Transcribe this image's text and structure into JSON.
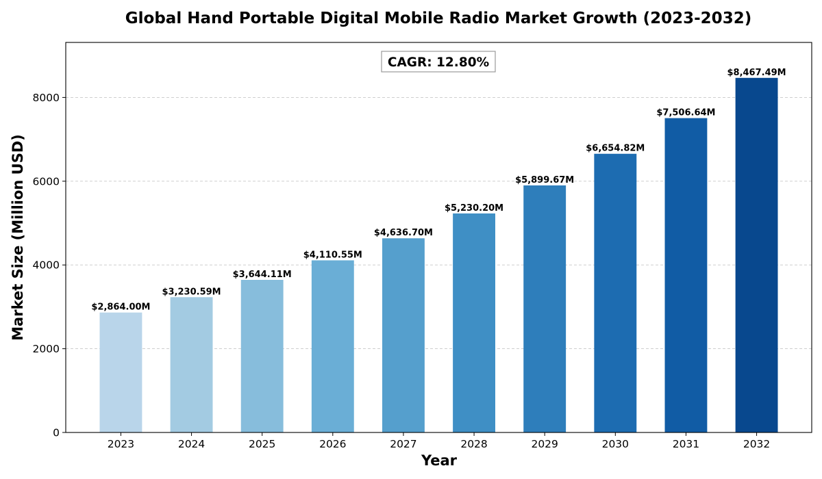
{
  "chart_data": {
    "type": "bar",
    "title": "Global Hand Portable Digital Mobile Radio Market Growth (2023-2032)",
    "xlabel": "Year",
    "ylabel": "Market Size (Million USD)",
    "categories": [
      "2023",
      "2024",
      "2025",
      "2026",
      "2027",
      "2028",
      "2029",
      "2030",
      "2031",
      "2032"
    ],
    "values": [
      2864.0,
      3230.59,
      3644.11,
      4110.55,
      4636.7,
      5230.2,
      5899.67,
      6654.82,
      7506.64,
      8467.49
    ],
    "data_labels": [
      "$2,864.00M",
      "$3,230.59M",
      "$3,644.11M",
      "$4,110.55M",
      "$4,636.70M",
      "$5,230.20M",
      "$5,899.67M",
      "$6,654.82M",
      "$7,506.64M",
      "$8,467.49M"
    ],
    "colors": [
      "#b9d5ea",
      "#a3cbe2",
      "#87bddc",
      "#6aaed6",
      "#559fcd",
      "#3f8fc5",
      "#2e7ebb",
      "#1d6cb1",
      "#115ca5",
      "#08488e"
    ],
    "ylim": [
      0,
      9314
    ],
    "yticks": [
      0,
      2000,
      4000,
      6000,
      8000
    ],
    "ytick_labels": [
      "0",
      "2000",
      "4000",
      "6000",
      "8000"
    ],
    "grid": "y-dashed",
    "annotation": "CAGR: 12.80%",
    "annotation_position": "top-center"
  }
}
